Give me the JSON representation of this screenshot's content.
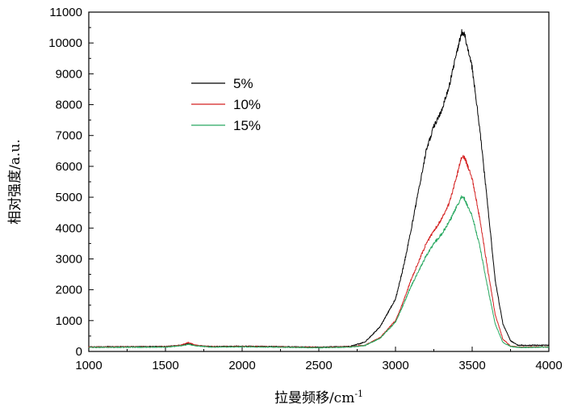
{
  "chart_data": {
    "type": "line",
    "xlabel": "拉曼频移/cm",
    "xlabel_superscript": "-1",
    "ylabel": "相对强度/a.u.",
    "xlim": [
      1000,
      4000
    ],
    "ylim": [
      0,
      11000
    ],
    "xticks": [
      1000,
      1500,
      2000,
      2500,
      3000,
      3500,
      4000
    ],
    "yticks": [
      0,
      1000,
      2000,
      3000,
      4000,
      5000,
      6000,
      7000,
      8000,
      9000,
      10000,
      11000
    ],
    "grid": false,
    "legend_position": "upper-left",
    "series": [
      {
        "name": "5%",
        "color": "#000000",
        "x": [
          1000,
          1500,
          1600,
          1650,
          1700,
          1800,
          2000,
          2200,
          2500,
          2700,
          2800,
          2900,
          3000,
          3050,
          3100,
          3150,
          3200,
          3250,
          3300,
          3350,
          3400,
          3430,
          3450,
          3500,
          3550,
          3600,
          3650,
          3700,
          3750,
          3800,
          4000
        ],
        "y": [
          150,
          160,
          200,
          260,
          190,
          160,
          170,
          160,
          140,
          160,
          300,
          800,
          1700,
          2700,
          3900,
          5200,
          6500,
          7300,
          7800,
          8600,
          9700,
          10350,
          10300,
          9200,
          7200,
          4800,
          2300,
          900,
          350,
          200,
          200
        ]
      },
      {
        "name": "10%",
        "color": "#d42020",
        "x": [
          1000,
          1500,
          1600,
          1650,
          1700,
          1800,
          2000,
          2200,
          2500,
          2700,
          2800,
          2900,
          3000,
          3050,
          3100,
          3150,
          3200,
          3250,
          3300,
          3350,
          3400,
          3430,
          3450,
          3500,
          3550,
          3600,
          3650,
          3700,
          3750,
          3800,
          4000
        ],
        "y": [
          140,
          150,
          200,
          290,
          200,
          150,
          160,
          150,
          130,
          150,
          200,
          450,
          1000,
          1600,
          2300,
          2900,
          3500,
          3900,
          4300,
          4800,
          5700,
          6300,
          6300,
          5600,
          4300,
          2700,
          1200,
          400,
          180,
          140,
          150
        ]
      },
      {
        "name": "15%",
        "color": "#27a860",
        "x": [
          1000,
          1500,
          1600,
          1650,
          1700,
          1800,
          2000,
          2200,
          2500,
          2700,
          2800,
          2900,
          3000,
          3050,
          3100,
          3150,
          3200,
          3250,
          3300,
          3350,
          3400,
          3430,
          3450,
          3500,
          3550,
          3600,
          3650,
          3700,
          3750,
          3800,
          4000
        ],
        "y": [
          130,
          140,
          180,
          230,
          180,
          140,
          150,
          140,
          120,
          140,
          190,
          430,
          950,
          1500,
          2100,
          2600,
          3100,
          3500,
          3800,
          4200,
          4700,
          5000,
          4950,
          4400,
          3400,
          2100,
          900,
          300,
          160,
          130,
          140
        ]
      }
    ]
  }
}
